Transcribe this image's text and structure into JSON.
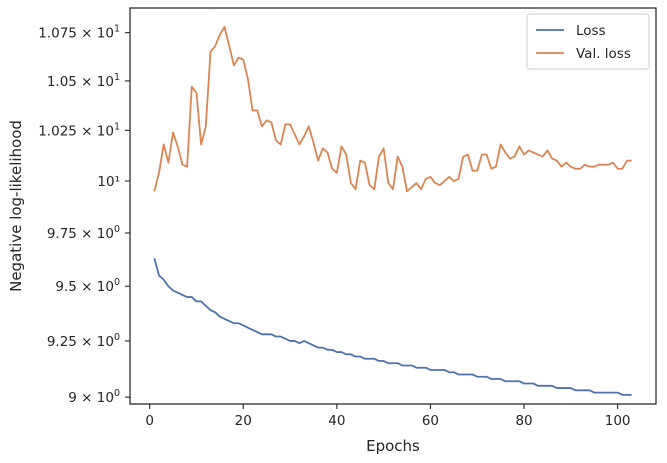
{
  "chart_data": {
    "type": "line",
    "title": "",
    "xlabel": "Epochs",
    "ylabel": "Negative log-likelihood",
    "xlim": [
      -4.2,
      108.2
    ],
    "ylim": [
      8.97,
      10.88
    ],
    "yscale": "log",
    "grid": false,
    "legend_position": "top-right",
    "x_ticks": [
      0,
      20,
      40,
      60,
      80,
      100
    ],
    "x_tick_labels": [
      "0",
      "20",
      "40",
      "60",
      "80",
      "100"
    ],
    "y_ticks": [
      {
        "value": 9.0,
        "base": "9",
        "exp": "0",
        "plain": ""
      },
      {
        "value": 9.25,
        "base": "9.25",
        "exp": "0",
        "plain": ""
      },
      {
        "value": 9.5,
        "base": "9.5",
        "exp": "0",
        "plain": ""
      },
      {
        "value": 9.75,
        "base": "9.75",
        "exp": "0",
        "plain": ""
      },
      {
        "value": 10.0,
        "base": "",
        "exp": "",
        "plain": "10¹"
      },
      {
        "value": 10.25,
        "base": "1.025",
        "exp": "1",
        "plain": ""
      },
      {
        "value": 10.5,
        "base": "1.05",
        "exp": "1",
        "plain": ""
      },
      {
        "value": 10.75,
        "base": "1.075",
        "exp": "1",
        "plain": ""
      }
    ],
    "x": [
      1,
      2,
      3,
      4,
      5,
      6,
      7,
      8,
      9,
      10,
      11,
      12,
      13,
      14,
      15,
      16,
      17,
      18,
      19,
      20,
      21,
      22,
      23,
      24,
      25,
      26,
      27,
      28,
      29,
      30,
      31,
      32,
      33,
      34,
      35,
      36,
      37,
      38,
      39,
      40,
      41,
      42,
      43,
      44,
      45,
      46,
      47,
      48,
      49,
      50,
      51,
      52,
      53,
      54,
      55,
      56,
      57,
      58,
      59,
      60,
      61,
      62,
      63,
      64,
      65,
      66,
      67,
      68,
      69,
      70,
      71,
      72,
      73,
      74,
      75,
      76,
      77,
      78,
      79,
      80,
      81,
      82,
      83,
      84,
      85,
      86,
      87,
      88,
      89,
      90,
      91,
      92,
      93,
      94,
      95,
      96,
      97,
      98,
      99,
      100,
      101,
      102,
      103
    ],
    "series": [
      {
        "name": "Loss",
        "color": "#4c72b0",
        "values": [
          9.63,
          9.55,
          9.53,
          9.5,
          9.48,
          9.47,
          9.46,
          9.45,
          9.45,
          9.43,
          9.43,
          9.41,
          9.39,
          9.38,
          9.36,
          9.35,
          9.34,
          9.33,
          9.33,
          9.32,
          9.31,
          9.3,
          9.29,
          9.28,
          9.28,
          9.28,
          9.27,
          9.27,
          9.26,
          9.25,
          9.25,
          9.24,
          9.25,
          9.24,
          9.23,
          9.22,
          9.22,
          9.21,
          9.21,
          9.2,
          9.2,
          9.19,
          9.19,
          9.18,
          9.18,
          9.17,
          9.17,
          9.17,
          9.16,
          9.16,
          9.15,
          9.15,
          9.15,
          9.14,
          9.14,
          9.14,
          9.13,
          9.13,
          9.13,
          9.12,
          9.12,
          9.12,
          9.12,
          9.11,
          9.11,
          9.1,
          9.1,
          9.1,
          9.1,
          9.09,
          9.09,
          9.09,
          9.08,
          9.08,
          9.08,
          9.07,
          9.07,
          9.07,
          9.07,
          9.06,
          9.06,
          9.06,
          9.05,
          9.05,
          9.05,
          9.05,
          9.04,
          9.04,
          9.04,
          9.04,
          9.03,
          9.03,
          9.03,
          9.03,
          9.02,
          9.02,
          9.02,
          9.02,
          9.02,
          9.02,
          9.01,
          9.01,
          9.01
        ]
      },
      {
        "name": "Val. loss",
        "color": "#dd8452",
        "values": [
          9.95,
          10.04,
          10.18,
          10.09,
          10.24,
          10.17,
          10.08,
          10.07,
          10.47,
          10.44,
          10.18,
          10.27,
          10.65,
          10.68,
          10.74,
          10.78,
          10.68,
          10.58,
          10.62,
          10.61,
          10.51,
          10.35,
          10.35,
          10.27,
          10.3,
          10.29,
          10.2,
          10.18,
          10.28,
          10.28,
          10.23,
          10.18,
          10.22,
          10.27,
          10.19,
          10.1,
          10.16,
          10.14,
          10.06,
          10.04,
          10.17,
          10.13,
          9.99,
          9.96,
          10.1,
          10.09,
          9.98,
          9.96,
          10.12,
          10.16,
          9.99,
          9.96,
          10.12,
          10.07,
          9.95,
          9.97,
          9.99,
          9.96,
          10.01,
          10.02,
          9.99,
          9.98,
          10.0,
          10.02,
          10.0,
          10.01,
          10.12,
          10.13,
          10.05,
          10.05,
          10.13,
          10.13,
          10.06,
          10.07,
          10.18,
          10.14,
          10.11,
          10.12,
          10.17,
          10.13,
          10.15,
          10.14,
          10.13,
          10.12,
          10.15,
          10.11,
          10.1,
          10.07,
          10.09,
          10.07,
          10.06,
          10.06,
          10.08,
          10.07,
          10.07,
          10.08,
          10.08,
          10.08,
          10.09,
          10.06,
          10.06,
          10.1,
          10.1
        ]
      }
    ]
  }
}
